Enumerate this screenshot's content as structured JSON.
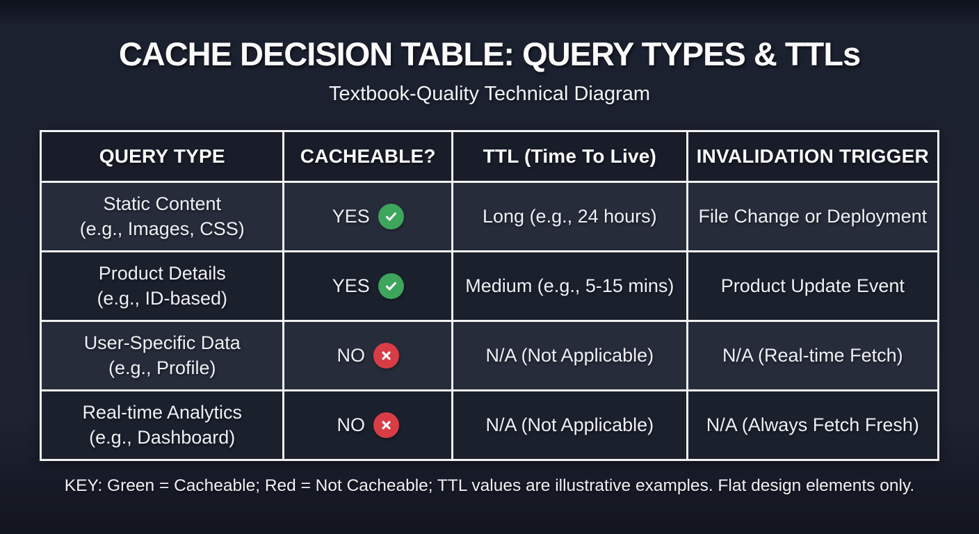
{
  "page": {
    "title": "CACHE DECISION TABLE: QUERY TYPES & TTLs",
    "subtitle": "Textbook-Quality Technical Diagram",
    "footer_key": "KEY: Green = Cacheable; Red = Not Cacheable; TTL values are illustrative examples. Flat design elements only."
  },
  "colors": {
    "background": "#1c2130",
    "header_bg": "#191d29",
    "row_light": "#272c3b",
    "row_dark": "#1b202d",
    "border": "#f2f2f2",
    "text": "#eef0f4",
    "cacheable_green": "#3da55c",
    "not_cacheable_red": "#d83d46"
  },
  "table": {
    "columns": [
      "QUERY TYPE",
      "CACHEABLE?",
      "TTL (Time To Live)",
      "INVALIDATION TRIGGER"
    ],
    "rows": [
      {
        "query_type_lines": [
          "Static Content",
          "(e.g., Images, CSS)"
        ],
        "cacheable": "YES",
        "status_icon": "check-circle",
        "status_color": "#3da55c",
        "ttl": "Long (e.g., 24 hours)",
        "invalidation_trigger": "File Change or Deployment",
        "shade": "light"
      },
      {
        "query_type_lines": [
          "Product Details",
          "(e.g., ID-based)"
        ],
        "cacheable": "YES",
        "status_icon": "check-circle",
        "status_color": "#3da55c",
        "ttl": "Medium (e.g., 5-15 mins)",
        "invalidation_trigger": "Product Update Event",
        "shade": "dark"
      },
      {
        "query_type_lines": [
          "User-Specific Data",
          "(e.g., Profile)"
        ],
        "cacheable": "NO",
        "status_icon": "x-circle",
        "status_color": "#d83d46",
        "ttl": "N/A (Not Applicable)",
        "invalidation_trigger": "N/A (Real-time Fetch)",
        "shade": "light"
      },
      {
        "query_type_lines": [
          "Real-time Analytics",
          "(e.g., Dashboard)"
        ],
        "cacheable": "NO",
        "status_icon": "x-circle",
        "status_color": "#d83d46",
        "ttl": "N/A (Not Applicable)",
        "invalidation_trigger": "N/A (Always Fetch Fresh)",
        "shade": "dark"
      }
    ]
  }
}
